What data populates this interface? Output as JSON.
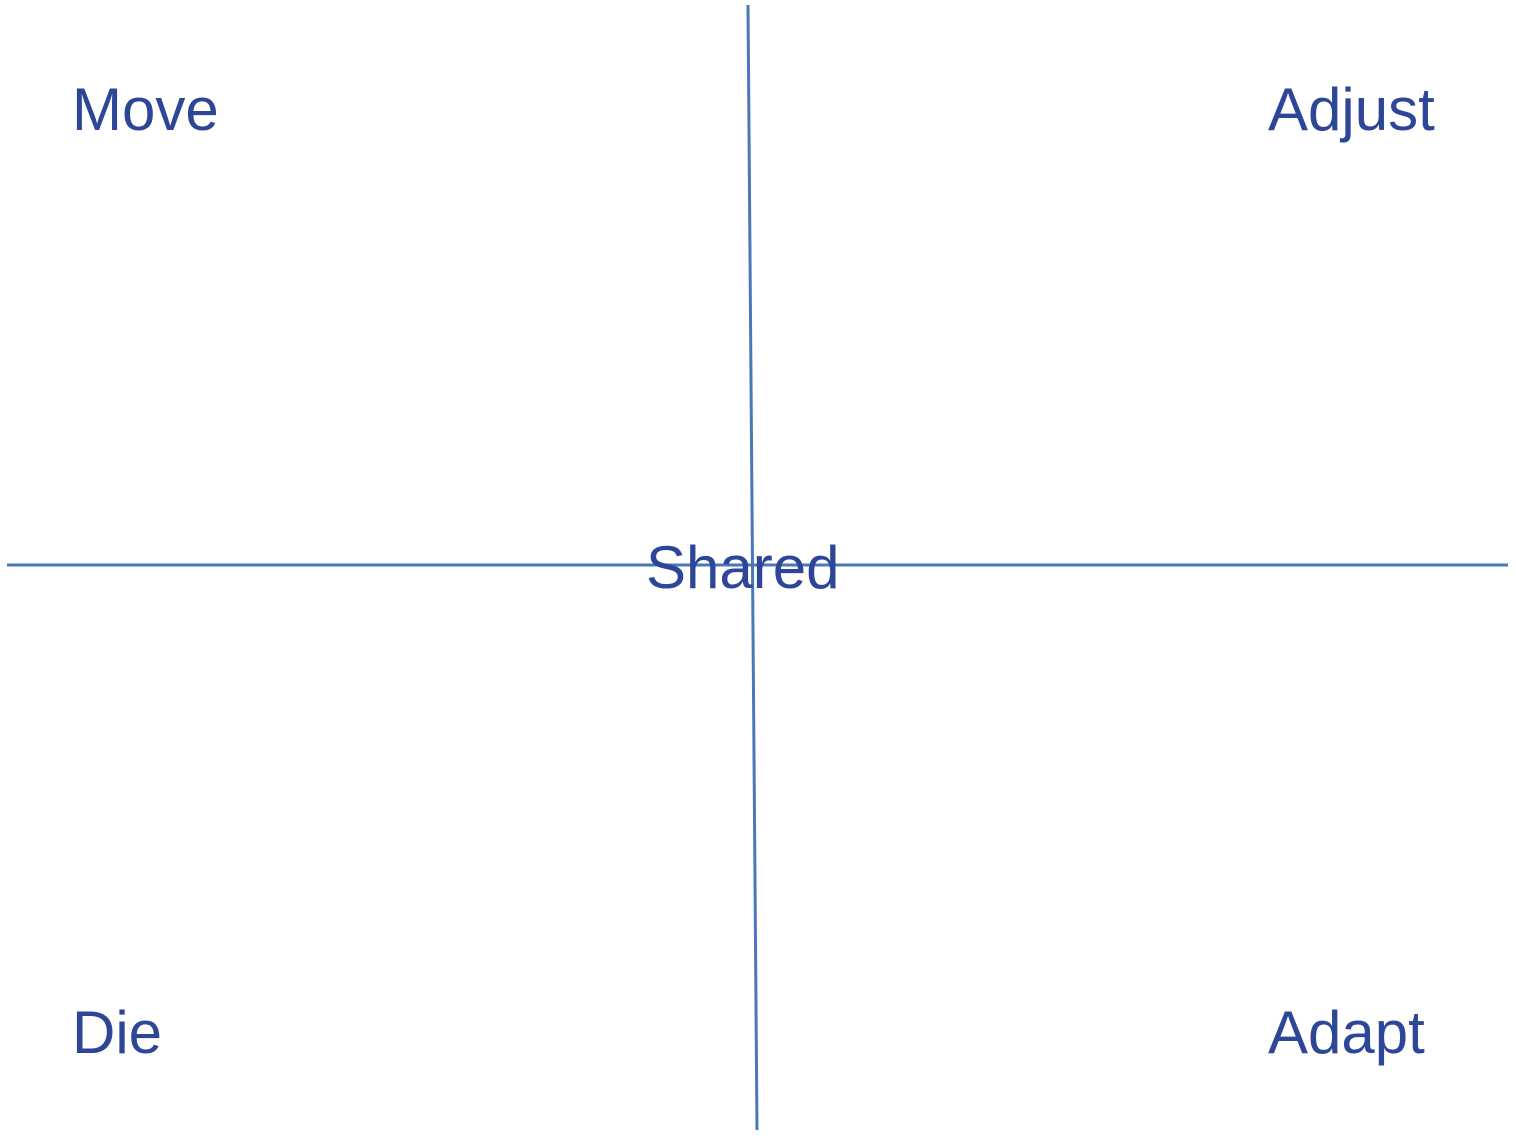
{
  "colors": {
    "line": "#4A78B8",
    "text": "#2E4697",
    "background": "#FFFFFF"
  },
  "quadrants": {
    "top_left": "Move",
    "top_right": "Adjust",
    "bottom_left": "Die",
    "bottom_right": "Adapt"
  },
  "center": {
    "label": "Shared"
  }
}
